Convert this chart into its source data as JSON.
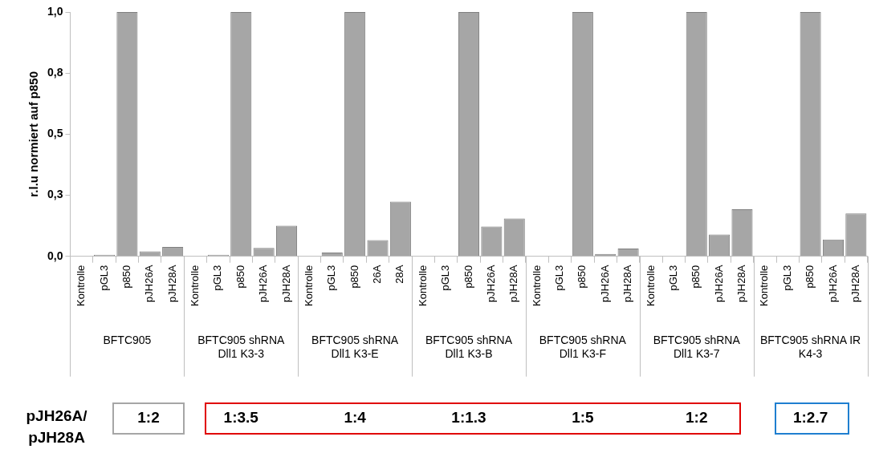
{
  "chart_data": {
    "type": "bar",
    "ylabel": "r.l.u normiert auf p850",
    "categories": [
      "Kontrolle",
      "pGL3",
      "p850",
      "pJH26A",
      "pJH28A",
      "Kontrolle",
      "pGL3",
      "p850",
      "pJH26A",
      "pJH28A",
      "Kontrolle",
      "pGL3",
      "p850",
      "26A",
      "28A",
      "Kontrolle",
      "pGL3",
      "p850",
      "pJH26A",
      "pJH28A",
      "Kontrolle",
      "pGL3",
      "p850",
      "pJH26A",
      "pJH28A",
      "Kontrolle",
      "pGL3",
      "p850",
      "pJH26A",
      "pJH28A",
      "Kontrolle",
      "pGL3",
      "p850",
      "pJH26A",
      "pJH28A"
    ],
    "values": [
      0,
      0.006,
      1,
      0.02,
      0.038,
      0,
      0.006,
      1,
      0.034,
      0.125,
      0,
      0.015,
      1,
      0.066,
      0.224,
      0,
      0,
      1,
      0.122,
      0.155,
      0,
      0,
      1,
      0.01,
      0.032,
      0,
      0,
      1,
      0.089,
      0.193,
      0,
      0,
      1,
      0.069,
      0.175
    ],
    "color": "#a6a6a6",
    "ylim": [
      0,
      1
    ],
    "yticks": [
      {
        "value": 0,
        "label": "0,0"
      },
      {
        "value": 0.25,
        "label": "0,3"
      },
      {
        "value": 0.5,
        "label": "0,5"
      },
      {
        "value": 0.75,
        "label": "0,8"
      },
      {
        "value": 1,
        "label": "1,0"
      }
    ],
    "grid": false,
    "legend": false,
    "annotations": [
      "BFTC905",
      "BFTC905 shRNA Dll1 K3-3",
      "BFTC905 shRNA Dll1 K3-E",
      "BFTC905 shRNA Dll1 K3-B",
      "BFTC905 shRNA Dll1 K3-F",
      "BFTC905 shRNA Dll1 K3-7",
      "BFTC905 shRNA IR K4-3",
      "pJH26A/ pJH28A",
      "1:2",
      "1:3.5",
      "1:4",
      "1:1.3",
      "1:5",
      "1:2",
      "1:2.7"
    ]
  }
}
